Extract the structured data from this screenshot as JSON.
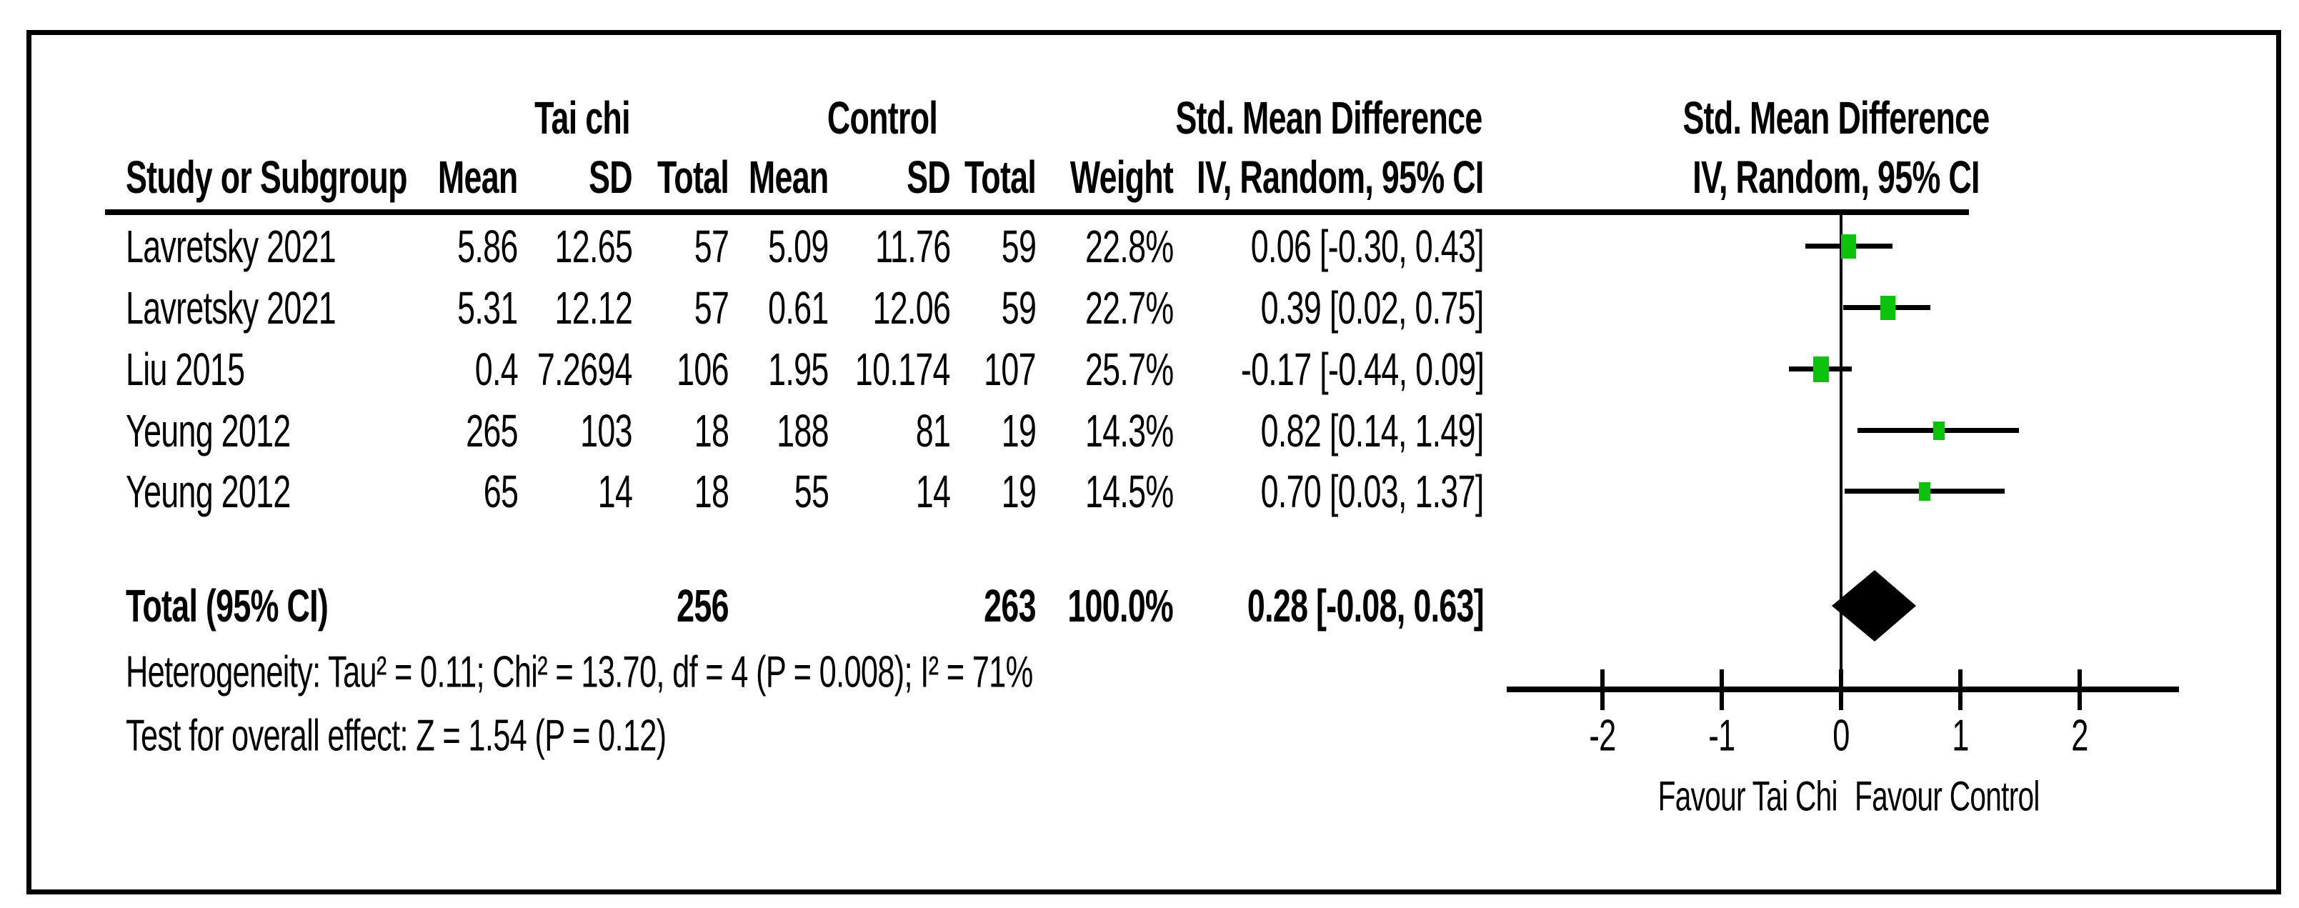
{
  "table": {
    "group_headers": {
      "treatment": "Tai chi",
      "control": "Control",
      "effect": "Std. Mean Difference"
    },
    "plot_header": {
      "line1": "Std. Mean Difference",
      "line2": "IV, Random, 95% CI"
    },
    "columns": [
      "Study or Subgroup",
      "Mean",
      "SD",
      "Total",
      "Mean",
      "SD",
      "Total",
      "Weight",
      "IV, Random, 95% CI"
    ],
    "rows": [
      {
        "study": "Lavretsky 2021",
        "mean1": "5.86",
        "sd1": "12.65",
        "total1": "57",
        "mean2": "5.09",
        "sd2": "11.76",
        "total2": "59",
        "weight": "22.8%",
        "ci": "0.06 [-0.30, 0.43]"
      },
      {
        "study": "Lavretsky 2021",
        "mean1": "5.31",
        "sd1": "12.12",
        "total1": "57",
        "mean2": "0.61",
        "sd2": "12.06",
        "total2": "59",
        "weight": "22.7%",
        "ci": "0.39 [0.02, 0.75]"
      },
      {
        "study": "Liu 2015",
        "mean1": "0.4",
        "sd1": "7.2694",
        "total1": "106",
        "mean2": "1.95",
        "sd2": "10.174",
        "total2": "107",
        "weight": "25.7%",
        "ci": "-0.17 [-0.44, 0.09]"
      },
      {
        "study": "Yeung 2012",
        "mean1": "265",
        "sd1": "103",
        "total1": "18",
        "mean2": "188",
        "sd2": "81",
        "total2": "19",
        "weight": "14.3%",
        "ci": "0.82 [0.14, 1.49]"
      },
      {
        "study": "Yeung 2012",
        "mean1": "65",
        "sd1": "14",
        "total1": "18",
        "mean2": "55",
        "sd2": "14",
        "total2": "19",
        "weight": "14.5%",
        "ci": "0.70 [0.03, 1.37]"
      }
    ],
    "total_row": {
      "label": "Total (95% CI)",
      "total1": "256",
      "total2": "263",
      "weight": "100.0%",
      "ci": "0.28 [-0.08, 0.63]"
    },
    "footnotes": {
      "heterogeneity": "Heterogeneity: Tau² = 0.11; Chi² = 13.70, df = 4 (P = 0.008); I² = 71%",
      "overall_effect": "Test for overall effect: Z = 1.54 (P = 0.12)"
    }
  },
  "chart_data": {
    "type": "forest",
    "title": "Std. Mean Difference, IV, Random, 95% CI",
    "x_ticks": [
      -2,
      -1,
      0,
      1,
      2
    ],
    "x_tick_labels": [
      "-2",
      "-1",
      "0",
      "1",
      "2"
    ],
    "x_range": [
      -2.8,
      2.83
    ],
    "x_axis_labels": {
      "left": "Favour Tai Chi",
      "right": "Favour Control"
    },
    "studies": [
      {
        "name": "Lavretsky 2021",
        "est": 0.06,
        "lo": -0.3,
        "hi": 0.43,
        "weight_pct": 22.8
      },
      {
        "name": "Lavretsky 2021",
        "est": 0.39,
        "lo": 0.02,
        "hi": 0.75,
        "weight_pct": 22.7
      },
      {
        "name": "Liu 2015",
        "est": -0.17,
        "lo": -0.44,
        "hi": 0.09,
        "weight_pct": 25.7
      },
      {
        "name": "Yeung 2012",
        "est": 0.82,
        "lo": 0.14,
        "hi": 1.49,
        "weight_pct": 14.3
      },
      {
        "name": "Yeung 2012",
        "est": 0.7,
        "lo": 0.03,
        "hi": 1.37,
        "weight_pct": 14.5
      }
    ],
    "total": {
      "est": 0.28,
      "lo": -0.08,
      "hi": 0.63
    },
    "legend_position": "none",
    "grid": false
  },
  "colors": {
    "marker_green": "#0cc20c",
    "line_black": "#000000",
    "background": "#ffffff"
  }
}
